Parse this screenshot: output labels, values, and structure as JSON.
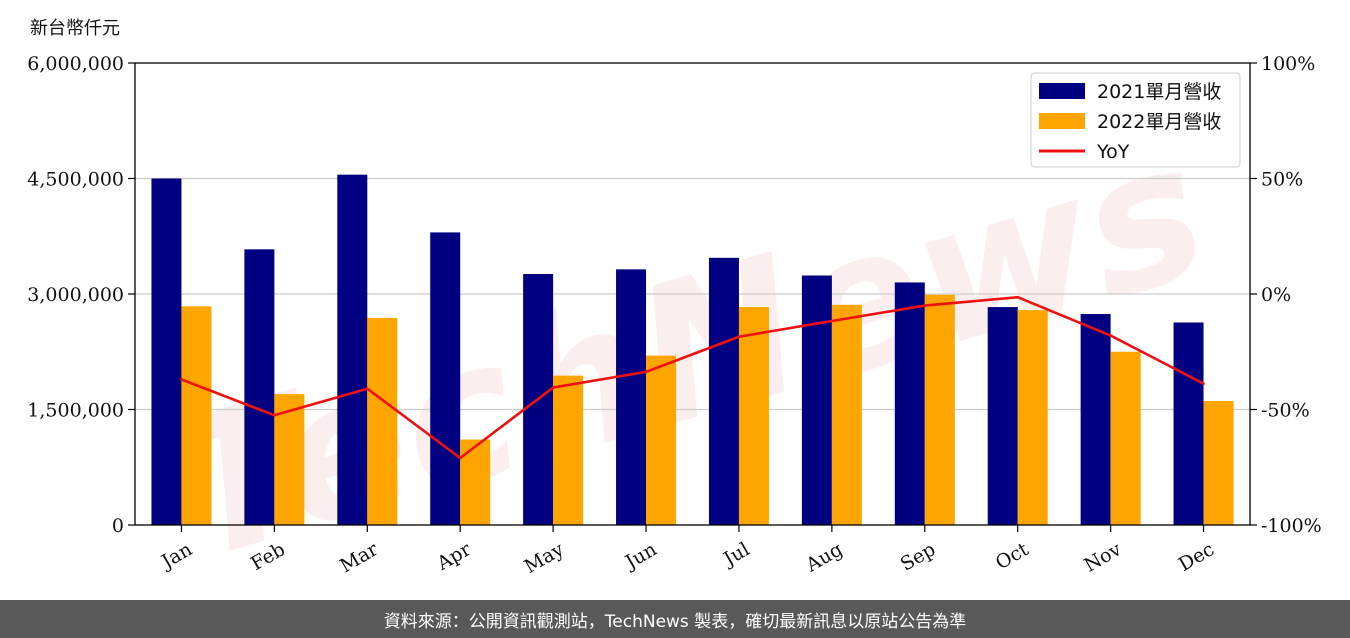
{
  "chart_data": {
    "type": "bar",
    "unit_label": "新台幣仟元",
    "categories": [
      "Jan",
      "Feb",
      "Mar",
      "Apr",
      "May",
      "Jun",
      "Jul",
      "Aug",
      "Sep",
      "Oct",
      "Nov",
      "Dec"
    ],
    "series": [
      {
        "name": "2021單月營收",
        "type": "bar",
        "axis": "left",
        "color": "#000080",
        "values": [
          4500000,
          3580000,
          4550000,
          3800000,
          3260000,
          3320000,
          3470000,
          3240000,
          3150000,
          2830000,
          2740000,
          2630000
        ]
      },
      {
        "name": "2022單月營收",
        "type": "bar",
        "axis": "left",
        "color": "#FFA500",
        "values": [
          2840000,
          1700000,
          2690000,
          1110000,
          1940000,
          2200000,
          2830000,
          2860000,
          2990000,
          2790000,
          2250000,
          1610000
        ]
      },
      {
        "name": "YoY",
        "type": "line",
        "axis": "right",
        "color": "#EE1111",
        "values": [
          -37,
          -52.5,
          -41,
          -71,
          -40.5,
          -33.7,
          -18.5,
          -11.7,
          -5,
          -1.4,
          -18,
          -38.8
        ]
      }
    ],
    "y_left": {
      "min": 0,
      "max": 6000000,
      "ticks": [
        0,
        1500000,
        3000000,
        4500000,
        6000000
      ],
      "tick_labels": [
        "0",
        "1,500,000",
        "3,000,000",
        "4,500,000",
        "6,000,000"
      ]
    },
    "y_right": {
      "min": -100,
      "max": 100,
      "ticks": [
        -100,
        -50,
        0,
        50,
        100
      ],
      "tick_labels": [
        "-100%",
        "-50%",
        "0%",
        "50%",
        "100%"
      ]
    },
    "grid": "horizontal",
    "legend_position": "top-right"
  },
  "watermark": "TechNews",
  "footer": {
    "text": "資料來源：公開資訊觀測站，TechNews 製表，確切最新訊息以原站公告為準"
  }
}
